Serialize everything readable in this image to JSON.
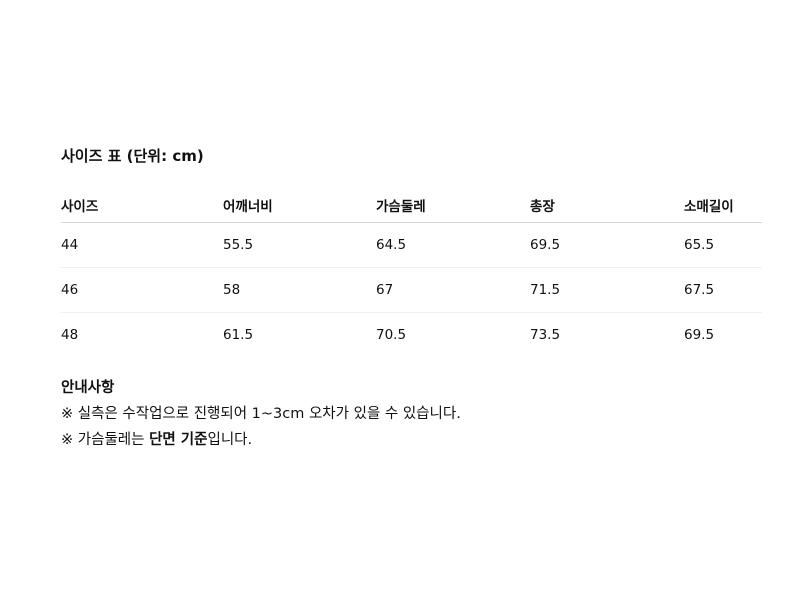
{
  "title": "사이즈 표 (단위: cm)",
  "table": {
    "headers": [
      "사이즈",
      "어깨너비",
      "가슴둘레",
      "총장",
      "소매길이"
    ],
    "rows": [
      [
        "44",
        "55.5",
        "64.5",
        "69.5",
        "65.5"
      ],
      [
        "46",
        "58",
        "67",
        "71.5",
        "67.5"
      ],
      [
        "48",
        "61.5",
        "70.5",
        "73.5",
        "69.5"
      ]
    ]
  },
  "notes": {
    "heading": "안내사항",
    "line1": "※ 실측은 수작업으로 진행되어 1~3cm 오차가 있을 수 있습니다.",
    "line2_prefix": "※ 가슴둘레는 ",
    "line2_bold": "단면 기준",
    "line2_suffix": "입니다."
  }
}
